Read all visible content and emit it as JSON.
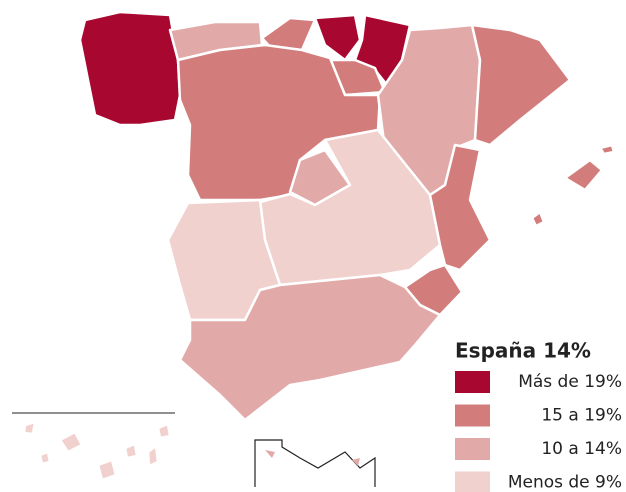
{
  "legend": {
    "title": "España 14%",
    "items": [
      {
        "label": "Más de 19%",
        "color": "#a8082f"
      },
      {
        "label": "15 a 19%",
        "color": "#d27d7c"
      },
      {
        "label": "10 a 14%",
        "color": "#e1aaa8"
      },
      {
        "label": "Menos de 9%",
        "color": "#f0d1ce"
      }
    ]
  }
}
